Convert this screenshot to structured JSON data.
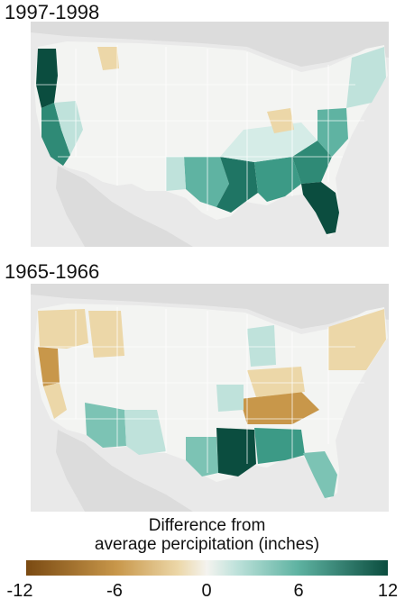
{
  "panels": [
    {
      "title": "1997-1998"
    },
    {
      "title": "1965-1966"
    }
  ],
  "legend": {
    "title_line1": "Difference from",
    "title_line2": "average percipitation (inches)",
    "ticks": [
      "-12",
      "-6",
      "0",
      "6",
      "12"
    ],
    "scale_min": -12,
    "scale_max": 12,
    "colors": {
      "strong_dry": "#7a4a12",
      "dry": "#c8974a",
      "mild_dry": "#ecd7a8",
      "neutral": "#f4f3ef",
      "mild_wet": "#bfe2db",
      "wet": "#5fb3a2",
      "strong_wet": "#0b4d3f"
    }
  },
  "map_colors": {
    "ocean": "#e9e9e9",
    "neighbor_land": "#d7d7d7",
    "land_base": "#f2f3f1",
    "borders": "#ffffff"
  }
}
